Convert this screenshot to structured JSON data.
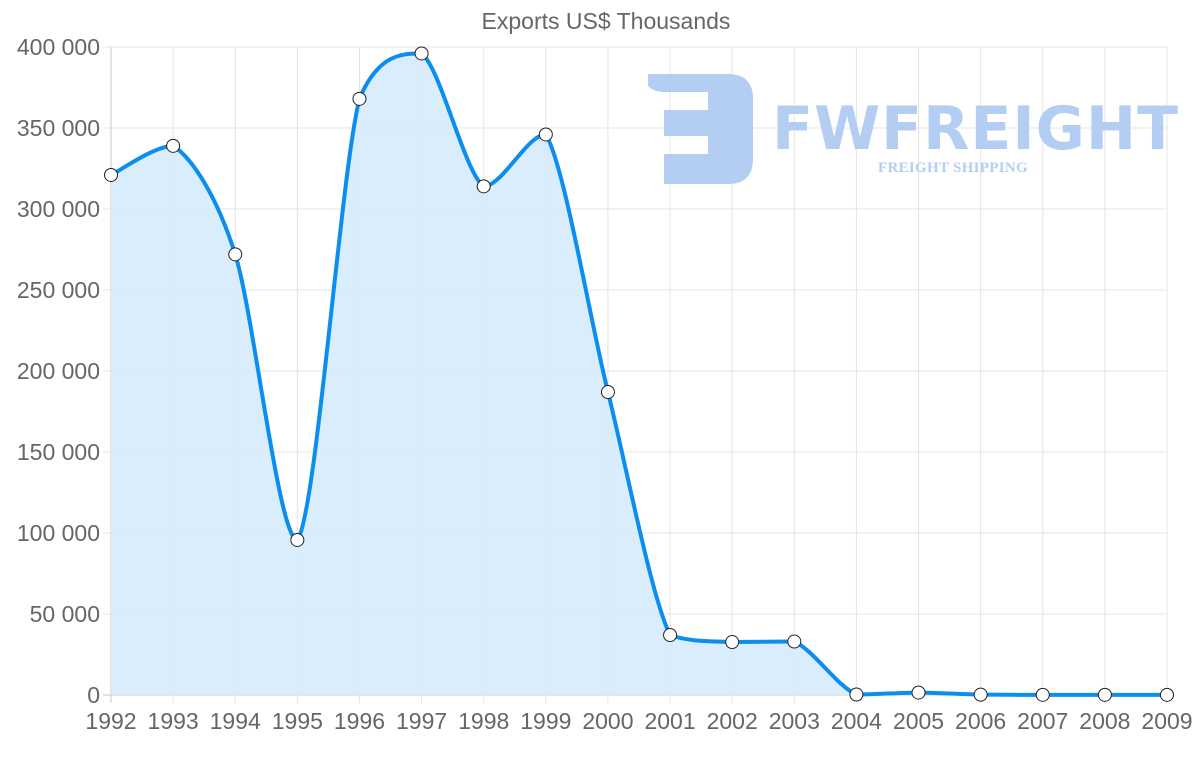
{
  "chart_data": {
    "type": "area",
    "title": "Exports US$ Thousands",
    "xlabel": "",
    "ylabel": "",
    "categories": [
      "1992",
      "1993",
      "1994",
      "1995",
      "1996",
      "1997",
      "1998",
      "1999",
      "2000",
      "2001",
      "2002",
      "2003",
      "2004",
      "2005",
      "2006",
      "2007",
      "2008",
      "2009"
    ],
    "series": [
      {
        "name": "Exports US$ Thousands",
        "values": [
          321000,
          339000,
          272000,
          95700,
          368000,
          396000,
          314000,
          346000,
          187000,
          37000,
          32700,
          33000,
          300,
          1500,
          200,
          100,
          100,
          100
        ],
        "line_color": "#0b8eee",
        "fill_color": "#d8ecfc",
        "point_fill": "#ffffff",
        "point_border": "#222222"
      }
    ],
    "ylim": [
      0,
      400000
    ],
    "yticks": [
      0,
      50000,
      100000,
      150000,
      200000,
      250000,
      300000,
      350000,
      400000
    ],
    "ytick_labels": [
      "0",
      "50 000",
      "100 000",
      "150 000",
      "200 000",
      "250 000",
      "300 000",
      "350 000",
      "400 000"
    ],
    "grid": true,
    "legend": "none"
  },
  "watermark": {
    "brand": "FWFREIGHT",
    "tagline": "FREIGHT SHIPPING",
    "color": "#b3cdf3"
  }
}
